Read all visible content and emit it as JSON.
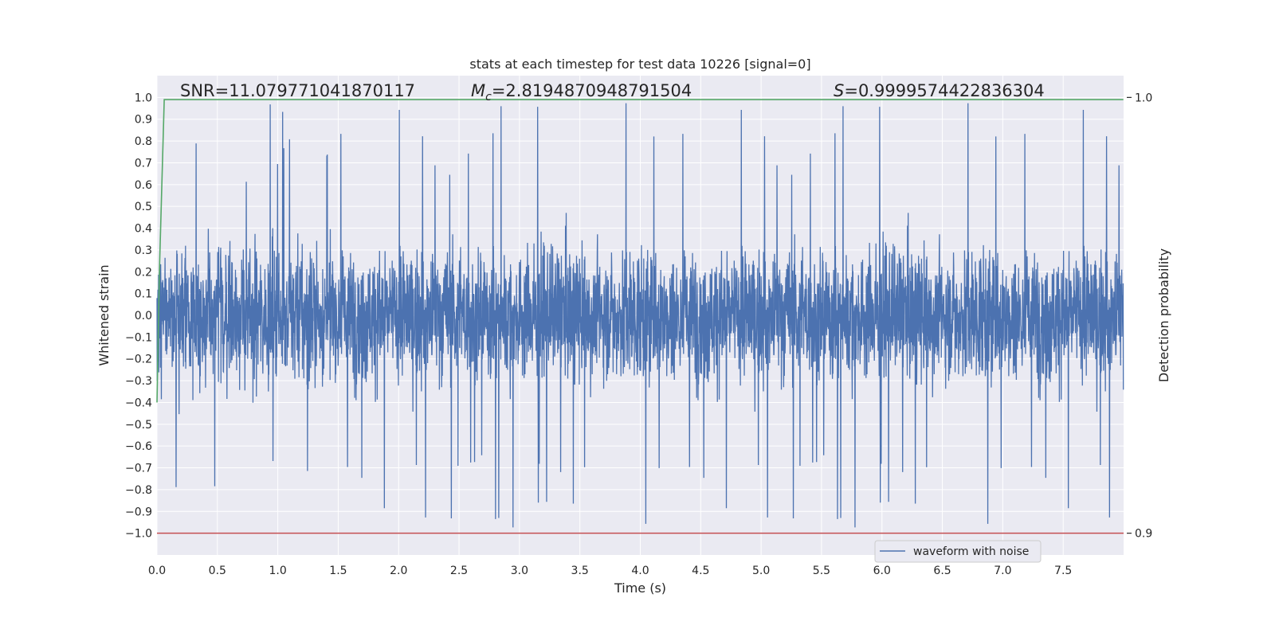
{
  "chart_data": {
    "type": "line",
    "title": "stats at each timestep for test data 10226 [signal=0]",
    "xlabel": "Time (s)",
    "ylabel": "Whitened strain",
    "y2label": "Detection probability",
    "xlim": [
      0.0,
      8.0
    ],
    "ylim": [
      -1.1,
      1.1
    ],
    "y2lim": [
      0.9,
      1.0
    ],
    "x_ticks": [
      "0.0",
      "0.5",
      "1.0",
      "1.5",
      "2.0",
      "2.5",
      "3.0",
      "3.5",
      "4.0",
      "4.5",
      "5.0",
      "5.5",
      "6.0",
      "6.5",
      "7.0",
      "7.5"
    ],
    "y_ticks": [
      "1.0",
      "0.9",
      "0.8",
      "0.7",
      "0.6",
      "0.5",
      "0.4",
      "0.3",
      "0.2",
      "0.1",
      "0.0",
      "−0.1",
      "−0.2",
      "−0.3",
      "−0.4",
      "−0.5",
      "−0.6",
      "−0.7",
      "−0.8",
      "−0.9",
      "−1.0"
    ],
    "y2_ticks": [
      "1.0",
      "0.9"
    ],
    "grid": true,
    "legend": {
      "position": "lower-right",
      "entries": [
        "waveform with noise"
      ]
    },
    "annotations": {
      "snr": "SNR=11.079771041870117",
      "mc_symbol": "M",
      "mc_sub": "c",
      "mc_value": "=2.8194870948791504",
      "s_symbol": "S",
      "s_value": "=0.9999574422836304"
    },
    "series": [
      {
        "name": "waveform with noise",
        "kind": "noise",
        "x_range": [
          0.0,
          7.998
        ],
        "amplitude_range": [
          -1.0,
          1.0
        ],
        "color": "#4c72b0"
      },
      {
        "kind": "detection probability",
        "axis": "right",
        "x": [
          0.0,
          0.02,
          0.06,
          7.998
        ],
        "y": [
          0.93,
          0.96,
          0.9995,
          0.9995
        ],
        "color": "#55a868"
      },
      {
        "kind": "threshold",
        "y": -1.0,
        "color": "#c44e52"
      }
    ],
    "colors": {
      "background": "#eaeaf2",
      "grid": "#ffffff"
    }
  }
}
